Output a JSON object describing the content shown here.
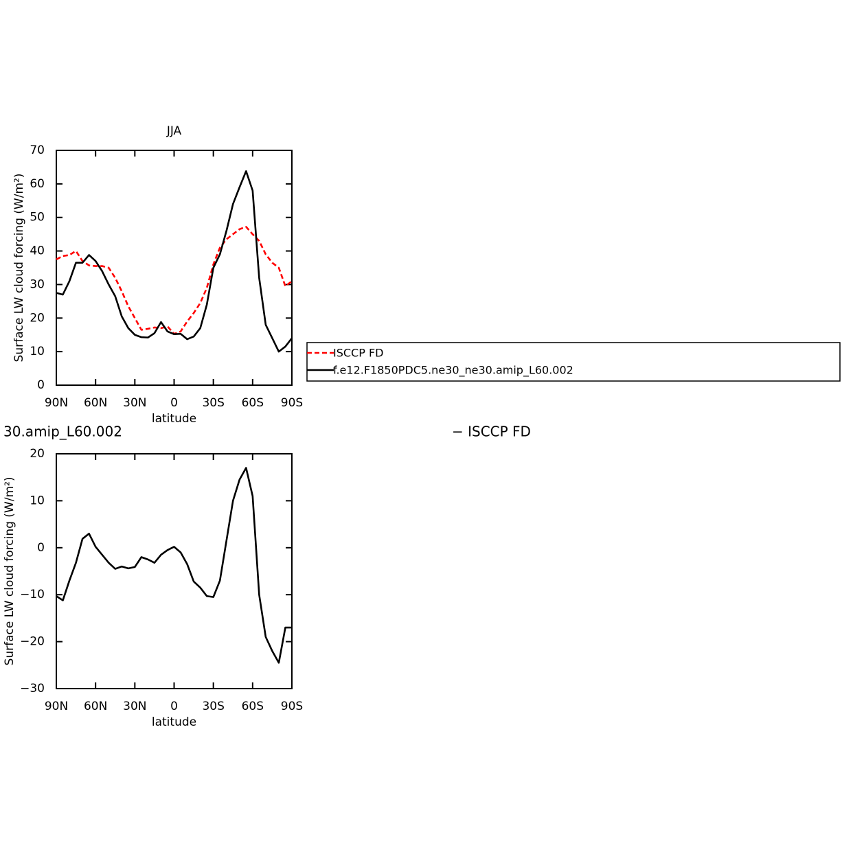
{
  "chart_data": [
    {
      "type": "line",
      "title": "JJA",
      "xlabel": "latitude",
      "ylabel": "Surface LW cloud forcing (W/m²)",
      "x": [
        90,
        85,
        80,
        75,
        70,
        65,
        60,
        55,
        50,
        45,
        40,
        35,
        30,
        25,
        20,
        15,
        10,
        5,
        0,
        -5,
        -10,
        -15,
        -20,
        -25,
        -30,
        -35,
        -40,
        -45,
        -50,
        -55,
        -60,
        -65,
        -70,
        -75,
        -80,
        -85,
        -90
      ],
      "series": [
        {
          "name": "ISCCP FD",
          "color": "#ff0000",
          "dash": true,
          "values": [
            37.5,
            38.5,
            38.8,
            40,
            37,
            35.7,
            35.5,
            35.5,
            35,
            32,
            28,
            23.5,
            20,
            16.5,
            16.8,
            17.2,
            17,
            17.5,
            15.3,
            16,
            19,
            21.5,
            24.5,
            29,
            36,
            41,
            43.5,
            45,
            46.5,
            47.2,
            45,
            43,
            39,
            36.5,
            35,
            29.5,
            31
          ]
        },
        {
          "name": "f.e12.F1850PDC5.ne30_ne30.amip_L60.002",
          "color": "#000000",
          "dash": false,
          "values": [
            27.5,
            27,
            31,
            36.5,
            36.5,
            38.8,
            37,
            34,
            30,
            26.5,
            20.5,
            17,
            15,
            14.3,
            14.2,
            15.5,
            18.8,
            16,
            15.2,
            15.3,
            13.7,
            14.5,
            17,
            24,
            35,
            39,
            46,
            54,
            59,
            63.8,
            58,
            32,
            18,
            14,
            10,
            11.5,
            14
          ]
        }
      ],
      "xlim": [
        90,
        -90
      ],
      "xticks": [
        {
          "value": 90,
          "label": "90N"
        },
        {
          "value": 60,
          "label": "60N"
        },
        {
          "value": 30,
          "label": "30N"
        },
        0,
        {
          "value": -30,
          "label": "30S"
        },
        {
          "value": -60,
          "label": "60S"
        },
        {
          "value": -90,
          "label": "90S"
        }
      ],
      "ylim": [
        0,
        70
      ],
      "yticks": [
        0,
        10,
        20,
        30,
        40,
        50,
        60,
        70
      ],
      "legend": true
    },
    {
      "type": "line",
      "left_title": "30.amip_L60.002",
      "right_title": "− ISCCP FD",
      "xlabel": "latitude",
      "ylabel": "Surface LW cloud forcing (W/m²)",
      "x": [
        90,
        85,
        80,
        75,
        70,
        65,
        60,
        55,
        50,
        45,
        40,
        35,
        30,
        25,
        20,
        15,
        10,
        5,
        0,
        -5,
        -10,
        -15,
        -20,
        -25,
        -30,
        -35,
        -40,
        -45,
        -50,
        -55,
        -60,
        -65,
        -70,
        -75,
        -80,
        -85,
        -90
      ],
      "series": [
        {
          "color": "#000000",
          "dash": false,
          "values": [
            -10.3,
            -11.2,
            -7,
            -3.2,
            1.9,
            3,
            0.2,
            -1.5,
            -3.2,
            -4.5,
            -4,
            -4.4,
            -4.1,
            -2,
            -2.5,
            -3.2,
            -1.5,
            -0.5,
            0.2,
            -1,
            -3.5,
            -7.2,
            -8.5,
            -10.3,
            -10.5,
            -7,
            1.5,
            10,
            14.5,
            17,
            11,
            -10,
            -19,
            -22,
            -24.5,
            -17,
            -17
          ]
        }
      ],
      "xlim": [
        90,
        -90
      ],
      "xticks": [
        {
          "value": 90,
          "label": "90N"
        },
        {
          "value": 60,
          "label": "60N"
        },
        {
          "value": 30,
          "label": "30N"
        },
        0,
        {
          "value": -30,
          "label": "30S"
        },
        {
          "value": -60,
          "label": "60S"
        },
        {
          "value": -90,
          "label": "90S"
        }
      ],
      "ylim": [
        -30,
        20
      ],
      "yticks": [
        {
          "value": -30,
          "label": "−30"
        },
        {
          "value": -20,
          "label": "−20"
        },
        {
          "value": -10,
          "label": "−10"
        },
        0,
        10,
        20
      ]
    }
  ]
}
